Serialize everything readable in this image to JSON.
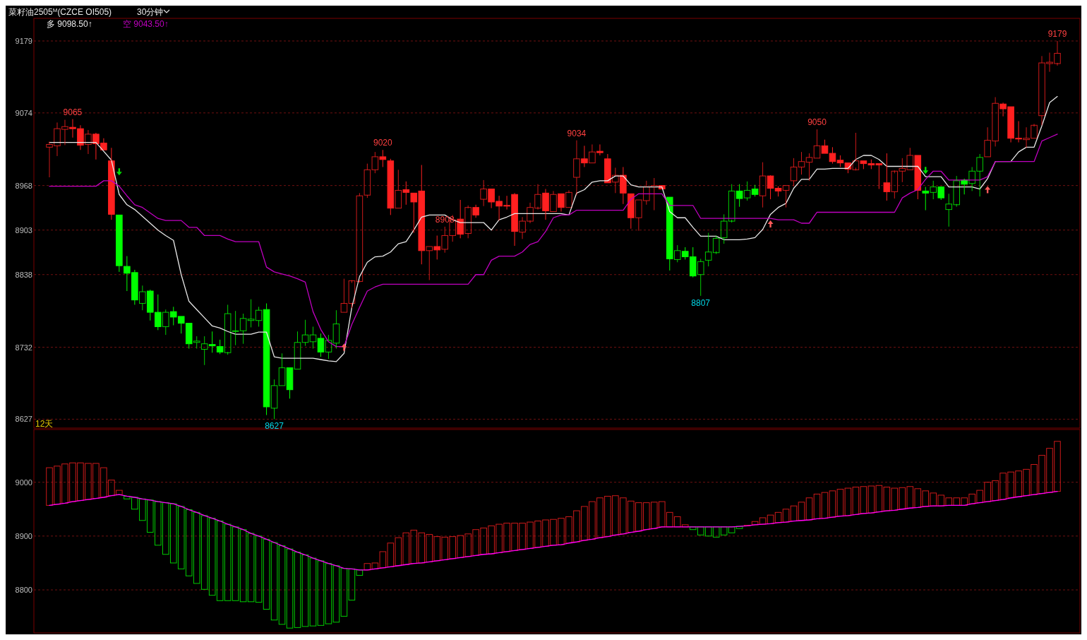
{
  "chart_data": [
    {
      "type": "candlestick",
      "title": "菜籽油2505$^{M}$(CZCE OI505)",
      "subtitle": "30分钟",
      "categories": [
        null,
        null,
        null,
        null,
        null,
        null,
        null,
        null,
        null,
        null,
        null,
        null,
        null,
        null,
        null,
        null,
        null,
        null,
        null,
        null,
        null,
        null,
        null,
        null,
        null,
        null,
        null,
        null,
        null,
        null,
        null,
        null,
        null,
        null,
        null,
        null,
        null,
        null,
        null,
        null,
        null,
        null,
        null,
        null,
        null,
        null,
        null,
        null,
        null,
        null,
        null,
        null,
        null,
        null,
        null,
        null,
        null,
        null,
        null,
        null,
        null,
        null,
        null,
        null,
        null,
        null,
        null,
        null,
        null,
        null,
        null,
        null,
        null,
        null,
        null,
        null,
        null,
        null,
        null,
        null,
        null,
        null,
        null,
        null,
        null,
        null,
        null,
        null,
        null,
        null,
        null,
        null,
        null,
        null,
        null,
        null,
        null,
        null,
        null,
        null,
        null,
        null,
        null,
        null,
        null,
        null,
        null,
        null,
        null,
        null,
        null,
        null,
        null,
        null,
        null,
        null,
        null,
        null,
        null,
        null,
        null,
        null,
        null,
        null,
        null,
        null,
        null,
        null,
        null,
        null,
        null
      ],
      "ohlc": [
        [
          9024,
          9032,
          8980,
          9028
        ],
        [
          9026,
          9060,
          9011,
          9051
        ],
        [
          9050,
          9064,
          9027,
          9054
        ],
        [
          9053,
          9065,
          9038,
          9051
        ],
        [
          9051,
          9056,
          9020,
          9027
        ],
        [
          9028,
          9049,
          9014,
          9043
        ],
        [
          9043,
          9045,
          9006,
          9029
        ],
        [
          9030,
          9037,
          9020,
          9020
        ],
        [
          9004,
          9023,
          8918,
          8926
        ],
        [
          8925,
          8925,
          8842,
          8851
        ],
        [
          8850,
          8865,
          8814,
          8840
        ],
        [
          8841,
          8845,
          8794,
          8801
        ],
        [
          8796,
          8822,
          8786,
          8813
        ],
        [
          8814,
          8816,
          8771,
          8783
        ],
        [
          8783,
          8809,
          8757,
          8762
        ],
        [
          8762,
          8787,
          8750,
          8783
        ],
        [
          8784,
          8791,
          8764,
          8776
        ],
        [
          8777,
          8777,
          8752,
          8767
        ],
        [
          8767,
          8767,
          8730,
          8737
        ],
        [
          8739,
          8748,
          8730,
          8741
        ],
        [
          8729,
          8748,
          8706,
          8737
        ],
        [
          8736,
          8755,
          8724,
          8734
        ],
        [
          8733,
          8743,
          8722,
          8725
        ],
        [
          8724,
          8794,
          8721,
          8781
        ],
        [
          8755,
          8785,
          8735,
          8756
        ],
        [
          8756,
          8781,
          8737,
          8774
        ],
        [
          8771,
          8802,
          8761,
          8773
        ],
        [
          8771,
          8791,
          8762,
          8786
        ],
        [
          8787,
          8796,
          8633,
          8645
        ],
        [
          8643,
          8685,
          8627,
          8676
        ],
        [
          8676,
          8723,
          8676,
          8702
        ],
        [
          8702,
          8702,
          8657,
          8670
        ],
        [
          8700,
          8755,
          8700,
          8739
        ],
        [
          8739,
          8772,
          8734,
          8750
        ],
        [
          8740,
          8762,
          8730,
          8750
        ],
        [
          8745,
          8752,
          8718,
          8725
        ],
        [
          8725,
          8750,
          8715,
          8742
        ],
        [
          8738,
          8786,
          8730,
          8766
        ],
        [
          8783,
          8832,
          8783,
          8796
        ],
        [
          8796,
          8830,
          8789,
          8829
        ],
        [
          8828,
          8957,
          8826,
          8953
        ],
        [
          8954,
          9000,
          8950,
          8991
        ],
        [
          8991,
          9017,
          8986,
          9010
        ],
        [
          9010,
          9020,
          8995,
          9006
        ],
        [
          9004,
          9007,
          8925,
          8935
        ],
        [
          8935,
          8991,
          8935,
          8961
        ],
        [
          8962,
          8974,
          8940,
          8958
        ],
        [
          8957,
          8957,
          8899,
          8944
        ],
        [
          8960,
          8998,
          8853,
          8873
        ],
        [
          8873,
          8879,
          8830,
          8879
        ],
        [
          8879,
          8895,
          8860,
          8874
        ],
        [
          8875,
          8908,
          8870,
          8895
        ],
        [
          8895,
          8925,
          8886,
          8918
        ],
        [
          8919,
          8947,
          8891,
          8897
        ],
        [
          8898,
          8939,
          8891,
          8936
        ],
        [
          8936,
          8940,
          8921,
          8925
        ],
        [
          8948,
          8976,
          8938,
          8963
        ],
        [
          8963,
          8963,
          8935,
          8944
        ],
        [
          8945,
          8953,
          8917,
          8938
        ],
        [
          8939,
          8953,
          8933,
          8938
        ],
        [
          8955,
          8957,
          8880,
          8901
        ],
        [
          8900,
          8922,
          8890,
          8916
        ],
        [
          8916,
          8943,
          8913,
          8936
        ],
        [
          8935,
          8970,
          8933,
          8955
        ],
        [
          8957,
          8963,
          8918,
          8931
        ],
        [
          8930,
          8960,
          8930,
          8955
        ],
        [
          8956,
          8956,
          8930,
          8936
        ],
        [
          8936,
          8961,
          8936,
          8958
        ],
        [
          8980,
          9034,
          8954,
          9007
        ],
        [
          9007,
          9026,
          8995,
          9001
        ],
        [
          9001,
          9028,
          9001,
          9017
        ],
        [
          9018,
          9028,
          9012,
          9016
        ],
        [
          9007,
          9014,
          8972,
          8972
        ],
        [
          8973,
          8994,
          8957,
          8983
        ],
        [
          8983,
          8995,
          8941,
          8957
        ],
        [
          8956,
          8956,
          8905,
          8921
        ],
        [
          8921,
          8947,
          8902,
          8947
        ],
        [
          8946,
          8975,
          8940,
          8966
        ],
        [
          8966,
          8979,
          8932,
          8968
        ],
        [
          8968,
          8968,
          8963,
          8963
        ],
        [
          8951,
          8951,
          8844,
          8861
        ],
        [
          8860,
          8881,
          8856,
          8873
        ],
        [
          8872,
          8878,
          8860,
          8864
        ],
        [
          8864,
          8878,
          8834,
          8836
        ],
        [
          8838,
          8861,
          8807,
          8857
        ],
        [
          8859,
          8899,
          8850,
          8871
        ],
        [
          8870,
          8895,
          8868,
          8891
        ],
        [
          8892,
          8926,
          8883,
          8916
        ],
        [
          8916,
          8970,
          8914,
          8960
        ],
        [
          8960,
          8970,
          8937,
          8949
        ],
        [
          8950,
          8974,
          8946,
          8961
        ],
        [
          8963,
          8969,
          8952,
          8955
        ],
        [
          8953,
          9002,
          8936,
          8982
        ],
        [
          8982,
          8983,
          8948,
          8964
        ],
        [
          8964,
          8967,
          8952,
          8960
        ],
        [
          8961,
          8968,
          8936,
          8968
        ],
        [
          8975,
          9008,
          8967,
          8995
        ],
        [
          8995,
          9017,
          8984,
          9003
        ],
        [
          9002,
          9015,
          8975,
          9009
        ],
        [
          9008,
          9050,
          9008,
          9026
        ],
        [
          9026,
          9035,
          9015,
          9015
        ],
        [
          9015,
          9024,
          9000,
          9003
        ],
        [
          9005,
          9012,
          8995,
          9001
        ],
        [
          9001,
          9001,
          8986,
          8992
        ],
        [
          8991,
          9045,
          8990,
          9004
        ],
        [
          9004,
          9004,
          8992,
          9000
        ],
        [
          9000,
          9006,
          8992,
          8998
        ],
        [
          9000,
          9000,
          8963,
          8998
        ],
        [
          8972,
          9015,
          8946,
          8959
        ],
        [
          8959,
          8990,
          8949,
          8989
        ],
        [
          8989,
          9008,
          8973,
          8993
        ],
        [
          8991,
          9023,
          8991,
          9012
        ],
        [
          9012,
          9012,
          8948,
          8961
        ],
        [
          8960,
          8966,
          8932,
          8957
        ],
        [
          8958,
          8975,
          8948,
          8966
        ],
        [
          8966,
          8967,
          8947,
          8950
        ],
        [
          8933,
          8956,
          8908,
          8941
        ],
        [
          8940,
          8982,
          8937,
          8975
        ],
        [
          8976,
          8978,
          8955,
          8970
        ],
        [
          8971,
          8995,
          8960,
          8989
        ],
        [
          8989,
          9014,
          8952,
          9009
        ],
        [
          9010,
          9053,
          9010,
          9034
        ],
        [
          9033,
          9097,
          9025,
          9088
        ],
        [
          9087,
          9089,
          9069,
          9080
        ],
        [
          9083,
          9083,
          9031,
          9037
        ],
        [
          9037,
          9062,
          9031,
          9036
        ],
        [
          9035,
          9053,
          9023,
          9037
        ],
        [
          9037,
          9058,
          9037,
          9056
        ],
        [
          9070,
          9157,
          9056,
          9147
        ],
        [
          9146,
          9162,
          9134,
          9148
        ],
        [
          9146,
          9179,
          9143,
          9161
        ]
      ],
      "colors": [
        "#ff2020",
        "#ff2020",
        "#ff2020",
        "#ff2020",
        "#ff2020",
        "#ff2020",
        "#ff2020",
        "#ff2020",
        "#ff2020",
        "#00ff00",
        "#00ff00",
        "#00ff00",
        "#00ff00",
        "#00ff00",
        "#00ff00",
        "#00ff00",
        "#00ff00",
        "#00ff00",
        "#00ff00",
        "#00ff00",
        "#00ff00",
        "#00ff00",
        "#00ff00",
        "#00ff00",
        "#00ff00",
        "#00ff00",
        "#00ff00",
        "#00ff00",
        "#00ff00",
        "#00ff00",
        "#00ff00",
        "#00ff00",
        "#00ff00",
        "#00ff00",
        "#00ff00",
        "#00ff00",
        "#00ff00",
        "#00ff00",
        "#ff2020",
        "#ff2020",
        "#ff2020",
        "#ff2020",
        "#ff2020",
        "#ff2020",
        "#ff2020",
        "#ff2020",
        "#ff2020",
        "#ff2020",
        "#ff2020",
        "#ff2020",
        "#ff2020",
        "#ff2020",
        "#ff2020",
        "#ff2020",
        "#ff2020",
        "#ff2020",
        "#ff2020",
        "#ff2020",
        "#ff2020",
        "#ff2020",
        "#ff2020",
        "#ff2020",
        "#ff2020",
        "#ff2020",
        "#ff2020",
        "#ff2020",
        "#ff2020",
        "#ff2020",
        "#ff2020",
        "#ff2020",
        "#ff2020",
        "#ff2020",
        "#ff2020",
        "#ff2020",
        "#ff2020",
        "#ff2020",
        "#ff2020",
        "#ff2020",
        "#ff2020",
        "#ff2020",
        "#00ff00",
        "#00ff00",
        "#00ff00",
        "#00ff00",
        "#00ff00",
        "#00ff00",
        "#00ff00",
        "#00ff00",
        "#00ff00",
        "#00ff00",
        "#00ff00",
        "#00ff00",
        "#ff2020",
        "#ff2020",
        "#ff2020",
        "#ff2020",
        "#ff2020",
        "#ff2020",
        "#ff2020",
        "#ff2020",
        "#ff2020",
        "#ff2020",
        "#ff2020",
        "#ff2020",
        "#ff2020",
        "#ff2020",
        "#ff2020",
        "#ff2020",
        "#ff2020",
        "#ff2020",
        "#ff2020",
        "#ff2020",
        "#ff2020",
        "#00ff00",
        "#00ff00",
        "#00ff00",
        "#00ff00",
        "#00ff00",
        "#00ff00",
        "#00ff00",
        "#00ff00",
        "#ff2020",
        "#ff2020",
        "#ff2020",
        "#ff2020",
        "#ff2020",
        "#ff2020",
        "#ff2020",
        "#ff2020",
        "#ff2020",
        "#ff2020"
      ],
      "series": [
        {
          "type": "line",
          "color": "#e8e8e8",
          "values": [
            9031,
            9031,
            9031,
            9031,
            9031,
            9031,
            9031,
            9018,
            9005,
            8955,
            8940,
            8933,
            8923,
            8913,
            8903,
            8895,
            8888,
            8838,
            8799,
            8787,
            8775,
            8763,
            8760,
            8755,
            8751,
            8751,
            8751,
            8754,
            8754,
            8718,
            8716,
            8716,
            8716,
            8716,
            8716,
            8714,
            8712,
            8711,
            8723,
            8790,
            8835,
            8856,
            8864,
            8865,
            8871,
            8883,
            8886,
            8903,
            8922,
            8925,
            8925,
            8925,
            8918,
            8914,
            8914,
            8914,
            8914,
            8903,
            8918,
            8922,
            8927,
            8927,
            8927,
            8927,
            8927,
            8927,
            8927,
            8925,
            8957,
            8962,
            8973,
            8975,
            8975,
            8982,
            8982,
            8969,
            8966,
            8966,
            8966,
            8966,
            8930,
            8921,
            8921,
            8907,
            8894,
            8894,
            8894,
            8889,
            8889,
            8889,
            8890,
            8892,
            8904,
            8926,
            8936,
            8942,
            8964,
            8977,
            8977,
            8992,
            8992,
            8993,
            8993,
            8993,
            9006,
            9012,
            9012,
            9006,
            8996,
            8996,
            8996,
            8996,
            8996,
            8981,
            8981,
            8981,
            8966,
            8966,
            8966,
            8966,
            8963,
            8978,
            9003,
            9003,
            9003,
            9017,
            9024,
            9024,
            9055,
            9089,
            9098
          ]
        },
        {
          "type": "line",
          "color": "#c000c0",
          "values": [
            8967,
            8967,
            8967,
            8967,
            8967,
            8967,
            8967,
            8975,
            8975,
            8967,
            8953,
            8940,
            8936,
            8928,
            8920,
            8917,
            8917,
            8917,
            8907,
            8907,
            8895,
            8895,
            8895,
            8890,
            8886,
            8886,
            8886,
            8886,
            8849,
            8842,
            8839,
            8836,
            8832,
            8827,
            8784,
            8758,
            8740,
            8733,
            8733,
            8765,
            8790,
            8814,
            8820,
            8824,
            8824,
            8824,
            8824,
            8824,
            8824,
            8824,
            8824,
            8824,
            8824,
            8824,
            8824,
            8838,
            8838,
            8859,
            8865,
            8865,
            8865,
            8871,
            8882,
            8886,
            8901,
            8921,
            8925,
            8925,
            8932,
            8932,
            8932,
            8932,
            8932,
            8932,
            8932,
            8948,
            8956,
            8956,
            8956,
            8956,
            8939,
            8939,
            8939,
            8939,
            8920,
            8920,
            8920,
            8920,
            8920,
            8920,
            8920,
            8920,
            8920,
            8920,
            8918,
            8918,
            8918,
            8913,
            8913,
            8929,
            8929,
            8929,
            8929,
            8929,
            8929,
            8929,
            8929,
            8929,
            8929,
            8929,
            8950,
            8957,
            8962,
            8977,
            8989,
            8989,
            8976,
            8976,
            8976,
            8976,
            8976,
            8981,
            9003,
            9003,
            9003,
            9003,
            9003,
            9003,
            9033,
            9038,
            9043
          ]
        }
      ],
      "ylim": [
        8614,
        9212
      ],
      "yticks": [
        8627,
        8732,
        8838,
        8903,
        8968,
        9074,
        9179
      ],
      "grid": "y",
      "annotations": [
        "多 9098.50↑",
        "空 9043.50↑",
        "12天",
        {
          "text": "9065",
          "y": 9065
        },
        {
          "text": "9020",
          "y": 9020
        },
        {
          "text": "9034",
          "y": 9034
        },
        {
          "text": "9050",
          "y": 9050
        },
        {
          "text": "9179",
          "y": 9179
        },
        {
          "text": "8627",
          "y": 8627
        },
        {
          "text": "8807",
          "y": 8807
        },
        {
          "text": "8908",
          "y": 8908
        }
      ]
    },
    {
      "type": "bar",
      "categories": [
        null,
        null,
        null,
        null,
        null,
        null,
        null,
        null,
        null,
        null,
        null,
        null,
        null,
        null,
        null,
        null,
        null,
        null,
        null,
        null,
        null,
        null,
        null,
        null,
        null,
        null,
        null,
        null,
        null,
        null,
        null,
        null,
        null,
        null,
        null,
        null,
        null,
        null,
        null,
        null,
        null,
        null,
        null,
        null,
        null,
        null,
        null,
        null,
        null,
        null,
        null,
        null,
        null,
        null,
        null,
        null,
        null,
        null,
        null,
        null,
        null,
        null,
        null,
        null,
        null,
        null,
        null,
        null,
        null,
        null,
        null,
        null,
        null,
        null,
        null,
        null,
        null,
        null,
        null,
        null,
        null,
        null,
        null,
        null,
        null,
        null,
        null,
        null,
        null,
        null,
        null,
        null,
        null,
        null,
        null,
        null,
        null,
        null,
        null,
        null,
        null,
        null,
        null,
        null,
        null,
        null,
        null,
        null,
        null,
        null,
        null,
        null,
        null,
        null,
        null,
        null,
        null,
        null,
        null,
        null,
        null,
        null,
        null,
        null,
        null,
        null,
        null,
        null,
        null,
        null,
        null
      ],
      "base": [
        8957,
        8959,
        8961,
        8964,
        8966,
        8968,
        8970,
        8972,
        8975,
        8977,
        8974,
        8972,
        8969,
        8967,
        8964,
        8962,
        8960,
        8955,
        8949,
        8944,
        8938,
        8933,
        8928,
        8922,
        8917,
        8912,
        8905,
        8900,
        8894,
        8888,
        8882,
        8876,
        8870,
        8865,
        8859,
        8854,
        8849,
        8845,
        8840,
        8839,
        8837,
        8837,
        8839,
        8841,
        8843,
        8845,
        8847,
        8849,
        8850,
        8852,
        8854,
        8856,
        8858,
        8860,
        8862,
        8864,
        8866,
        8867,
        8869,
        8871,
        8873,
        8875,
        8877,
        8879,
        8881,
        8883,
        8884,
        8887,
        8889,
        8892,
        8894,
        8897,
        8899,
        8902,
        8904,
        8907,
        8909,
        8912,
        8914,
        8917,
        8917,
        8917,
        8917,
        8917,
        8917,
        8917,
        8917,
        8917,
        8917,
        8918,
        8919,
        8921,
        8922,
        8923,
        8925,
        8926,
        8928,
        8929,
        8930,
        8932,
        8933,
        8935,
        8937,
        8938,
        8940,
        8942,
        8943,
        8945,
        8947,
        8948,
        8950,
        8952,
        8953,
        8955,
        8956,
        8956,
        8957,
        8957,
        8957,
        8960,
        8962,
        8964,
        8966,
        8968,
        8971,
        8973,
        8975,
        8977,
        8979,
        8981,
        8983
      ],
      "values": [
        70,
        71,
        73,
        72,
        70,
        67,
        65,
        55,
        29,
        8,
        -5,
        -22,
        -40,
        -60,
        -81,
        -96,
        -110,
        -116,
        -123,
        -132,
        -137,
        -143,
        -148,
        -142,
        -137,
        -134,
        -127,
        -123,
        -130,
        -144,
        -146,
        -147,
        -140,
        -133,
        -126,
        -120,
        -112,
        -105,
        -89,
        -58,
        -10,
        12,
        11,
        30,
        44,
        52,
        59,
        62,
        56,
        51,
        45,
        42,
        41,
        41,
        42,
        48,
        49,
        52,
        53,
        53,
        51,
        49,
        49,
        49,
        49,
        48,
        49,
        49,
        58,
        63,
        70,
        74,
        75,
        73,
        67,
        58,
        53,
        50,
        49,
        47,
        27,
        19,
        4,
        -5,
        -15,
        -17,
        -19,
        -15,
        -11,
        -4,
        1,
        6,
        12,
        16,
        19,
        24,
        28,
        34,
        41,
        46,
        48,
        49,
        50,
        51,
        51,
        50,
        50,
        49,
        44,
        41,
        40,
        40,
        35,
        29,
        24,
        20,
        14,
        14,
        14,
        18,
        23,
        36,
        37,
        49,
        48,
        48,
        49,
        56,
        71,
        82,
        93
      ],
      "colors": [
        "#ff2020",
        "#ff2020",
        "#ff2020",
        "#ff2020",
        "#ff2020",
        "#ff2020",
        "#ff2020",
        "#ff2020",
        "#ff2020",
        "#ff2020",
        "#00ff00",
        "#00ff00",
        "#00ff00",
        "#00ff00",
        "#00ff00",
        "#00ff00",
        "#00ff00",
        "#00ff00",
        "#00ff00",
        "#00ff00",
        "#00ff00",
        "#00ff00",
        "#00ff00",
        "#00ff00",
        "#00ff00",
        "#00ff00",
        "#00ff00",
        "#00ff00",
        "#00ff00",
        "#00ff00",
        "#00ff00",
        "#00ff00",
        "#00ff00",
        "#00ff00",
        "#00ff00",
        "#00ff00",
        "#00ff00",
        "#00ff00",
        "#00ff00",
        "#00ff00",
        "#00ff00",
        "#ff2020",
        "#ff2020",
        "#ff2020",
        "#ff2020",
        "#ff2020",
        "#ff2020",
        "#ff2020",
        "#ff2020",
        "#ff2020",
        "#ff2020",
        "#ff2020",
        "#ff2020",
        "#ff2020",
        "#ff2020",
        "#ff2020",
        "#ff2020",
        "#ff2020",
        "#ff2020",
        "#ff2020",
        "#ff2020",
        "#ff2020",
        "#ff2020",
        "#ff2020",
        "#ff2020",
        "#ff2020",
        "#ff2020",
        "#ff2020",
        "#ff2020",
        "#ff2020",
        "#ff2020",
        "#ff2020",
        "#ff2020",
        "#ff2020",
        "#ff2020",
        "#ff2020",
        "#ff2020",
        "#ff2020",
        "#ff2020",
        "#ff2020",
        "#ff2020",
        "#ff2020",
        "#ff2020",
        "#00ff00",
        "#00ff00",
        "#00ff00",
        "#00ff00",
        "#00ff00",
        "#00ff00",
        "#00ff00",
        "#ff2020",
        "#ff2020",
        "#ff2020",
        "#ff2020",
        "#ff2020",
        "#ff2020",
        "#ff2020",
        "#ff2020",
        "#ff2020",
        "#ff2020",
        "#ff2020",
        "#ff2020",
        "#ff2020",
        "#ff2020",
        "#ff2020",
        "#ff2020",
        "#ff2020",
        "#ff2020",
        "#ff2020",
        "#ff2020",
        "#ff2020",
        "#ff2020",
        "#ff2020",
        "#ff2020",
        "#ff2020",
        "#ff2020",
        "#ff2020",
        "#ff2020",
        "#ff2020",
        "#ff2020",
        "#ff2020",
        "#ff2020",
        "#ff2020",
        "#ff2020",
        "#ff2020",
        "#ff2020",
        "#ff2020",
        "#ff2020",
        "#ff2020",
        "#ff2020",
        "#ff2020"
      ],
      "series": [
        {
          "type": "line",
          "color": "#ff00ff",
          "values": [
            8957,
            8959,
            8961,
            8964,
            8966,
            8968,
            8970,
            8972,
            8975,
            8977,
            8974,
            8972,
            8969,
            8967,
            8964,
            8962,
            8960,
            8955,
            8949,
            8944,
            8938,
            8933,
            8928,
            8922,
            8917,
            8912,
            8905,
            8900,
            8894,
            8888,
            8882,
            8876,
            8870,
            8865,
            8859,
            8854,
            8849,
            8845,
            8840,
            8839,
            8837,
            8837,
            8839,
            8841,
            8843,
            8845,
            8847,
            8849,
            8850,
            8852,
            8854,
            8856,
            8858,
            8860,
            8862,
            8864,
            8866,
            8867,
            8869,
            8871,
            8873,
            8875,
            8877,
            8879,
            8881,
            8883,
            8884,
            8887,
            8889,
            8892,
            8894,
            8897,
            8899,
            8902,
            8904,
            8907,
            8909,
            8912,
            8914,
            8917,
            8917,
            8917,
            8917,
            8917,
            8917,
            8917,
            8917,
            8917,
            8917,
            8918,
            8919,
            8921,
            8922,
            8923,
            8925,
            8926,
            8928,
            8929,
            8930,
            8932,
            8933,
            8935,
            8937,
            8938,
            8940,
            8942,
            8943,
            8945,
            8947,
            8948,
            8950,
            8952,
            8953,
            8955,
            8956,
            8956,
            8957,
            8957,
            8957,
            8960,
            8962,
            8964,
            8966,
            8968,
            8971,
            8973,
            8975,
            8977,
            8979,
            8981,
            8983
          ]
        }
      ],
      "ylim": [
        8720,
        9098
      ],
      "yticks": [
        8800,
        8900,
        9000
      ],
      "grid": "y"
    }
  ]
}
